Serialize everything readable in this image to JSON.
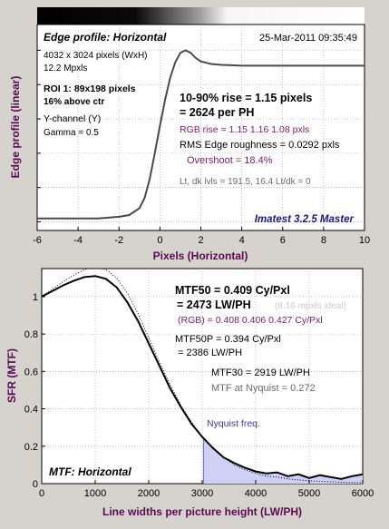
{
  "colors": {
    "background": "#d6d3ce",
    "axis_label": "#5a0a50",
    "purple": "#7a1a6e",
    "gray": "#6b6b6b",
    "navy": "#1a1a80",
    "nyquist_fill": "#cfd0f5"
  },
  "chart_data": [
    {
      "type": "line",
      "title": "Edge profile: Horizontal",
      "xlabel": "Pixels (Horizontal)",
      "ylabel": "Edge profile (linear)",
      "xlim": [
        -6,
        10
      ],
      "x_ticks": [
        "-6",
        "-4",
        "-2",
        "0",
        "2",
        "4",
        "6",
        "8",
        "10"
      ],
      "grid": true,
      "series": [
        {
          "x": [
            -6,
            -5,
            -4,
            -3,
            -2,
            -1.5,
            -1,
            -0.75,
            -0.5,
            -0.25,
            0,
            0.25,
            0.5,
            0.75,
            1,
            1.25,
            1.5,
            1.75,
            2,
            2.5,
            3,
            4,
            5,
            6,
            7,
            8,
            9,
            10
          ],
          "y": [
            0.02,
            0.02,
            0.02,
            0.02,
            0.03,
            0.04,
            0.08,
            0.14,
            0.25,
            0.4,
            0.56,
            0.71,
            0.84,
            0.93,
            0.985,
            1.0,
            0.985,
            0.955,
            0.935,
            0.92,
            0.915,
            0.91,
            0.91,
            0.91,
            0.91,
            0.91,
            0.91,
            0.91
          ]
        }
      ],
      "annotations": {
        "date": "25-Mar-2011 09:35:49",
        "pixels": "4032 x 3024 pixels (WxH)",
        "mpxls": "12.2 Mpxls",
        "roi": "ROI 1:  89x198 pixels",
        "roi_pos": "16% above ctr",
        "channel": "Y-channel  (Y)",
        "gamma": "Gamma = 0.5",
        "rise": "10-90% rise = 1.15 pixels",
        "per_ph": "= 2624 per PH",
        "rgb_rise": "RGB rise = 1.15  1.16  1.08 pxls",
        "roughness": "RMS Edge roughness = 0.0292 pxls",
        "overshoot": "Overshoot = 18.4%",
        "levels": "Lt, dk lvls = 191.5, 16.4   Lt/dk = 0",
        "brand": "Imatest 3.2.5 Master"
      }
    },
    {
      "type": "line",
      "title": "MTF: Horizontal",
      "xlabel": "Line widths per picture height (LW/PH)",
      "ylabel": "SFR (MTF)",
      "xlim": [
        0,
        6000
      ],
      "ylim": [
        0,
        1.15
      ],
      "x_ticks": [
        "0",
        "1000",
        "2000",
        "3000",
        "4000",
        "5000",
        "6000"
      ],
      "y_ticks": [
        "0",
        "0.2",
        "0.4",
        "0.6",
        "0.8",
        "1"
      ],
      "grid": true,
      "series": [
        {
          "x": [
            0,
            200,
            400,
            600,
            800,
            1000,
            1200,
            1400,
            1600,
            1800,
            2000,
            2200,
            2400,
            2600,
            2800,
            3000,
            3200,
            3400,
            3600,
            3800,
            4000,
            4200,
            4400,
            4600,
            4800,
            5000,
            5200,
            5400,
            5600,
            5800,
            6000
          ],
          "y": [
            1.0,
            1.03,
            1.06,
            1.085,
            1.105,
            1.11,
            1.095,
            1.05,
            0.97,
            0.87,
            0.75,
            0.63,
            0.51,
            0.41,
            0.32,
            0.25,
            0.19,
            0.14,
            0.11,
            0.085,
            0.065,
            0.055,
            0.06,
            0.04,
            0.05,
            0.03,
            0.045,
            0.035,
            0.025,
            0.04,
            0.05
          ]
        },
        {
          "x": [
            0,
            200,
            400,
            600,
            800,
            1000,
            1200,
            1400,
            1600,
            1800,
            2000,
            2200,
            2400,
            2600,
            2800,
            3000,
            3200,
            3400,
            3600,
            3800,
            4000,
            4200,
            4400,
            4600,
            4800,
            5000,
            5200,
            5400,
            5600,
            5800,
            6000
          ],
          "y": [
            1.0,
            1.04,
            1.08,
            1.115,
            1.145,
            1.16,
            1.145,
            1.1,
            1.02,
            0.91,
            0.78,
            0.65,
            0.53,
            0.42,
            0.33,
            0.25,
            0.19,
            0.14,
            0.1,
            0.075,
            0.055,
            0.04,
            0.035,
            0.025,
            0.02,
            0.015,
            0.012,
            0.01,
            0.008,
            0.006,
            0.005
          ]
        }
      ],
      "nyquist": {
        "x": 3024,
        "label": "Nyquist freq."
      },
      "annotations": {
        "mtf50": "MTF50 = 0.409 Cy/Pxl",
        "mtf50_lw": "= 2473 LW/PH",
        "mpxls_ideal": "(8.16 mpxls ideal)",
        "rgb": "(RGB) = 0.408  0.406  0.427 Cy/Pxl",
        "mtf50p": "MTF50P = 0.394 Cy/Pxl",
        "mtf50p_lw": "= 2386 LW/PH",
        "mtf30": "MTF30 = 2919 LW/PH",
        "mtf_nyq": "MTF at Nyquist = 0.272"
      }
    }
  ]
}
